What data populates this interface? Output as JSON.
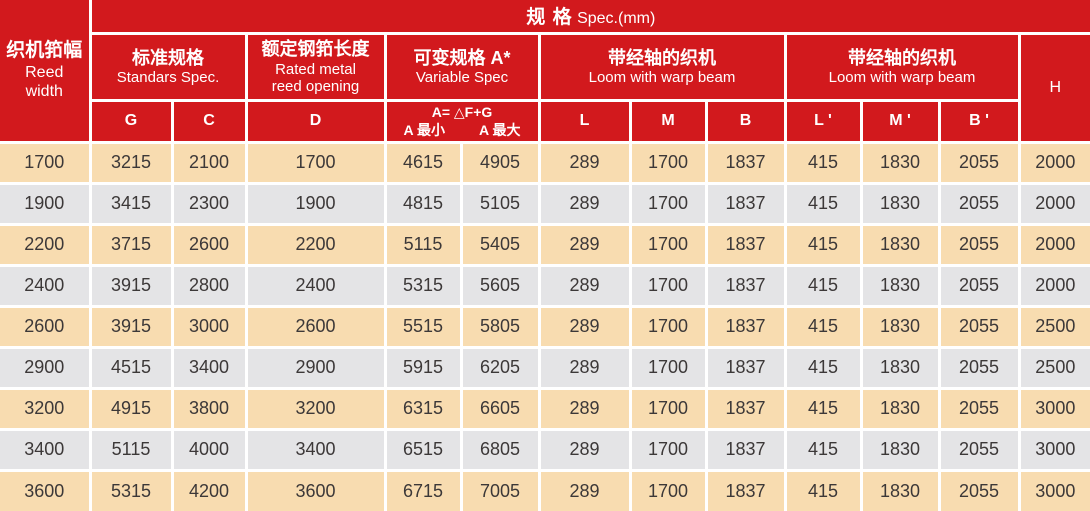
{
  "header": {
    "title": {
      "zh": "规 格",
      "en": "Spec.(mm)"
    },
    "reed_width": {
      "zh": "织机筘幅",
      "en_line1": "Reed",
      "en_line2": "width"
    },
    "groups": {
      "standard": {
        "zh": "标准规格",
        "en": "Standars Spec."
      },
      "rated": {
        "zh": "额定钢筘长度",
        "en_line1": "Rated metal",
        "en_line2": "reed opening"
      },
      "variable": {
        "zh": "可变规格 A*",
        "en": "Variable Spec"
      },
      "warp_beam_1": {
        "zh": "带经轴的织机",
        "en": "Loom with warp beam"
      },
      "warp_beam_2": {
        "zh": "带经轴的织机",
        "en": "Loom with warp beam"
      }
    },
    "variable": {
      "formula": "A= △F+G",
      "min": "A 最小",
      "max": "A 最大"
    },
    "columns": {
      "g": "G",
      "c": "C",
      "d": "D",
      "l": "L",
      "m": "M",
      "b": "B",
      "l2": "L '",
      "m2": "M '",
      "b2": "B '",
      "h": "H"
    }
  },
  "table": {
    "column_keys": [
      "reed_width",
      "G",
      "C",
      "D",
      "A_min",
      "A_max",
      "L",
      "M",
      "B",
      "L_prime",
      "M_prime",
      "B_prime",
      "H"
    ],
    "rows": [
      [
        "1700",
        "3215",
        "2100",
        "1700",
        "4615",
        "4905",
        "289",
        "1700",
        "1837",
        "415",
        "1830",
        "2055",
        "2000"
      ],
      [
        "1900",
        "3415",
        "2300",
        "1900",
        "4815",
        "5105",
        "289",
        "1700",
        "1837",
        "415",
        "1830",
        "2055",
        "2000"
      ],
      [
        "2200",
        "3715",
        "2600",
        "2200",
        "5115",
        "5405",
        "289",
        "1700",
        "1837",
        "415",
        "1830",
        "2055",
        "2000"
      ],
      [
        "2400",
        "3915",
        "2800",
        "2400",
        "5315",
        "5605",
        "289",
        "1700",
        "1837",
        "415",
        "1830",
        "2055",
        "2000"
      ],
      [
        "2600",
        "3915",
        "3000",
        "2600",
        "5515",
        "5805",
        "289",
        "1700",
        "1837",
        "415",
        "1830",
        "2055",
        "2500"
      ],
      [
        "2900",
        "4515",
        "3400",
        "2900",
        "5915",
        "6205",
        "289",
        "1700",
        "1837",
        "415",
        "1830",
        "2055",
        "2500"
      ],
      [
        "3200",
        "4915",
        "3800",
        "3200",
        "6315",
        "6605",
        "289",
        "1700",
        "1837",
        "415",
        "1830",
        "2055",
        "3000"
      ],
      [
        "3400",
        "5115",
        "4000",
        "3400",
        "6515",
        "6805",
        "289",
        "1700",
        "1837",
        "415",
        "1830",
        "2055",
        "3000"
      ],
      [
        "3600",
        "5315",
        "4200",
        "3600",
        "6715",
        "7005",
        "289",
        "1700",
        "1837",
        "415",
        "1830",
        "2055",
        "3000"
      ]
    ]
  },
  "colors": {
    "header_red": "#d2191d",
    "row_peach": "#f8dcb0",
    "row_gray": "#e4e4e6",
    "text_dark": "#3c3838",
    "separator_white": "#ffffff"
  }
}
